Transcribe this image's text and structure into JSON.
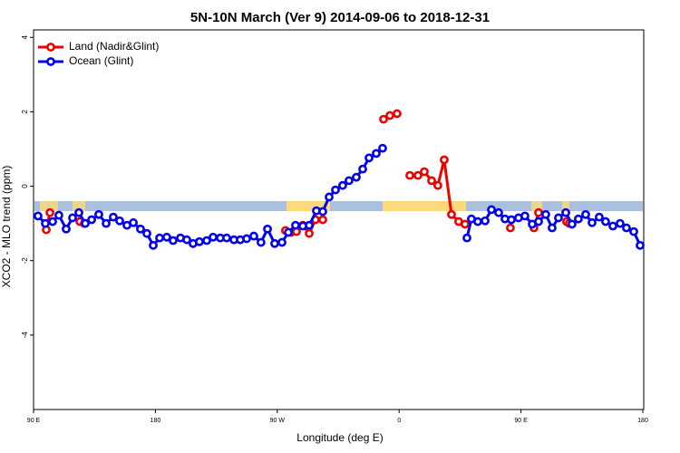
{
  "chart_data": {
    "type": "line",
    "title": "5N-10N March (Ver 9)   2014-09-06 to 2018-12-31",
    "x_label": "Longitude (deg E)",
    "y_label": "XCO2 - MLO trend (ppm)",
    "xlim": [
      90,
      540
    ],
    "ylim": [
      -6,
      4.2
    ],
    "xticks": [
      {
        "value": 90,
        "label": "90 E"
      },
      180,
      {
        "value": 270,
        "label": "90 W"
      },
      {
        "value": 360,
        "label": "0"
      },
      {
        "value": 450,
        "label": "90 E"
      },
      {
        "value": 540,
        "label": "180"
      }
    ],
    "yticks": [
      -4,
      -2,
      0,
      2,
      4
    ],
    "legend": "top-left",
    "series": [
      {
        "name": "Land (Nadir&Glint)",
        "color": "#ee0000",
        "x": [
          99.4,
          102.1,
          null,
          124.2,
          127.5,
          null,
          276.1,
          280.2,
          284.2,
          288.9,
          293.6,
          298.2,
          303.6,
          null,
          348.5,
          353.2,
          358.5,
          null,
          367.9,
          373.9,
          378.6,
          384.0,
          388.6,
          393.3,
          398.7,
          404.0,
          408.7,
          null,
          442.2,
          null,
          459.6,
          463.0,
          null,
          483.7,
          485.7
        ],
        "values": [
          -1.17,
          -0.71,
          null,
          -0.95,
          -1.0,
          null,
          -1.19,
          -1.24,
          -1.22,
          -1.05,
          -1.27,
          -0.9,
          -0.9,
          null,
          1.8,
          1.9,
          1.95,
          null,
          0.29,
          0.29,
          0.39,
          0.15,
          0.02,
          0.71,
          -0.76,
          -0.95,
          -1.02,
          null,
          -1.12,
          null,
          -1.12,
          -0.71,
          null,
          -0.95,
          -1.0
        ]
      },
      {
        "name": "Ocean (Glint)",
        "color": "#0000ee",
        "x": [
          93.3,
          98.7,
          104.1,
          108.7,
          114.1,
          118.8,
          123.5,
          128.2,
          132.9,
          138.2,
          143.6,
          148.9,
          153.6,
          159.0,
          163.7,
          169.0,
          173.7,
          178.4,
          183.1,
          188.4,
          193.1,
          198.5,
          203.2,
          207.8,
          212.5,
          217.9,
          222.6,
          227.9,
          232.6,
          238.0,
          242.7,
          247.4,
          252.7,
          258.0,
          262.8,
          268.1,
          273.5,
          278.2,
          283.5,
          288.9,
          293.6,
          298.9,
          303.6,
          308.3,
          313.0,
          318.3,
          323.0,
          328.4,
          333.1,
          337.8,
          343.1,
          347.8,
          null,
          410.1,
          413.4,
          418.1,
          423.5,
          428.2,
          433.5,
          438.2,
          442.9,
          448.2,
          452.9,
          458.3,
          463.0,
          468.3,
          473.0,
          477.7,
          483.1,
          487.7,
          492.4,
          497.8,
          502.5,
          507.8,
          512.5,
          517.9,
          523.2,
          527.9,
          533.3,
          538.0
        ],
        "values": [
          -0.8,
          -1.0,
          -0.95,
          -0.78,
          -1.15,
          -0.85,
          -0.71,
          -1.0,
          -0.9,
          -0.76,
          -1.0,
          -0.83,
          -0.93,
          -1.05,
          -0.98,
          -1.15,
          -1.27,
          -1.59,
          -1.39,
          -1.37,
          -1.46,
          -1.39,
          -1.44,
          -1.54,
          -1.49,
          -1.46,
          -1.37,
          -1.39,
          -1.39,
          -1.44,
          -1.44,
          -1.41,
          -1.34,
          -1.51,
          -1.15,
          -1.54,
          -1.51,
          -1.24,
          -1.05,
          -1.07,
          -1.05,
          -0.66,
          -0.68,
          -0.29,
          -0.1,
          0.02,
          0.15,
          0.24,
          0.46,
          0.76,
          0.88,
          1.02,
          null,
          -1.39,
          -0.88,
          -0.95,
          -0.93,
          -0.63,
          -0.71,
          -0.88,
          -0.9,
          -0.85,
          -0.8,
          -1.02,
          -0.95,
          -0.76,
          -1.12,
          -0.85,
          -0.71,
          -1.02,
          -0.88,
          -0.76,
          -0.98,
          -0.83,
          -0.95,
          -1.07,
          -1.0,
          -1.12,
          -1.22,
          -1.59
        ]
      }
    ]
  }
}
